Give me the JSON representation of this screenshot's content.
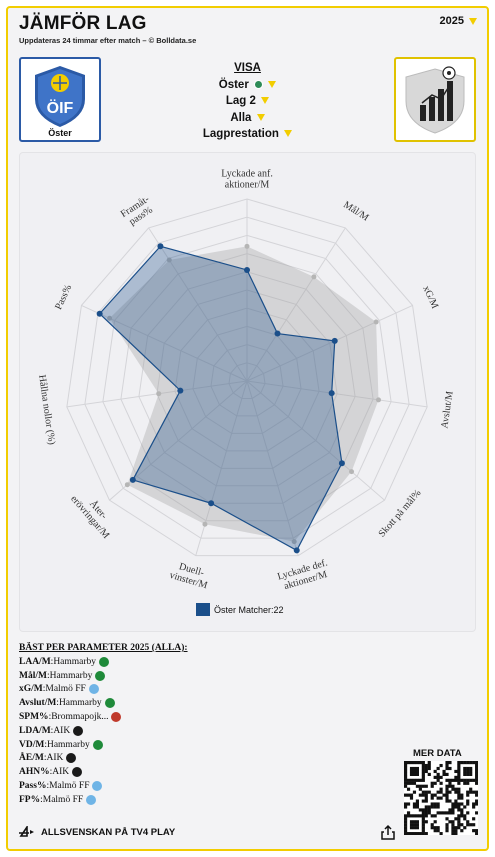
{
  "header": {
    "title": "JÄMFÖR LAG",
    "subtitle": "Uppdateras 24 timmar efter match – © Bolldata.se",
    "year": "2025"
  },
  "team": {
    "name": "Öster",
    "logo_text": "ÖIF"
  },
  "visa": {
    "title": "VISA",
    "team_select": "Öster",
    "compare_select": "Lag 2",
    "filter_select": "Alla",
    "metric_select": "Lagprestation"
  },
  "chart_data": {
    "type": "radar",
    "axes": [
      "Lyckade anf. aktioner/M",
      "Mål/M",
      "xG/M",
      "Avslut/M",
      "Skott på mål%",
      "Lyckade def. aktioner/M",
      "Duell-vinster/M",
      "Åter-erövringar/M",
      "Hållna nollor (%)",
      "Pass%",
      "Framåt-pass%"
    ],
    "axis_label_lines": [
      [
        "Lyckade anf.",
        "aktioner/M"
      ],
      [
        "Mål/M"
      ],
      [
        "xG/M"
      ],
      [
        "Avslut/M"
      ],
      [
        "Skott på mål%"
      ],
      [
        "Lyckade def.",
        "aktioner/M"
      ],
      [
        "Duell-",
        "vinster/M"
      ],
      [
        "Åter-",
        "erövringar/M"
      ],
      [
        "Hållna nollor (%)"
      ],
      [
        "Pass%"
      ],
      [
        "Framåt-",
        "pass%"
      ]
    ],
    "range": [
      0,
      1
    ],
    "rings": 10,
    "series": [
      {
        "name": "Öster Matcher:22",
        "color": "#1b4f8a",
        "values": [
          0.61,
          0.31,
          0.53,
          0.47,
          0.69,
          0.97,
          0.7,
          0.83,
          0.37,
          0.89,
          0.88
        ]
      },
      {
        "color": "#9a9a9a",
        "values": [
          0.74,
          0.68,
          0.78,
          0.73,
          0.76,
          0.92,
          0.82,
          0.87,
          0.49,
          0.83,
          0.79
        ]
      }
    ],
    "legend": [
      "Öster Matcher:22"
    ]
  },
  "best": {
    "title": "BÄST PER PARAMETER 2025 (ALLA):",
    "rows": [
      {
        "key": "LAA/M",
        "team": "Hammarby",
        "color": "#1f8a3a"
      },
      {
        "key": "Mål/M",
        "team": "Hammarby",
        "color": "#1f8a3a"
      },
      {
        "key": "xG/M",
        "team": "Malmö FF",
        "color": "#6fb4e6"
      },
      {
        "key": "Avslut/M",
        "team": "Hammarby",
        "color": "#1f8a3a"
      },
      {
        "key": "SPM%",
        "team": "Brommapojk...",
        "color": "#c0392b"
      },
      {
        "key": "LDA/M",
        "team": "AIK",
        "color": "#1a1a1a"
      },
      {
        "key": "VD/M",
        "team": "Hammarby",
        "color": "#1f8a3a"
      },
      {
        "key": "ÅE/M",
        "team": "AIK",
        "color": "#1a1a1a"
      },
      {
        "key": "AHN%",
        "team": "AIK",
        "color": "#1a1a1a"
      },
      {
        "key": "Pass%",
        "team": "Malmö FF",
        "color": "#6fb4e6"
      },
      {
        "key": "FP%",
        "team": "Malmö FF",
        "color": "#6fb4e6"
      }
    ]
  },
  "more": {
    "label": "MER DATA"
  },
  "footer": {
    "label": "ALLSVENSKAN PÅ TV4 PLAY"
  },
  "colors": {
    "accent": "#f2cd00",
    "series_main": "#1b4f8a",
    "series_ref": "#9a9a9a"
  }
}
